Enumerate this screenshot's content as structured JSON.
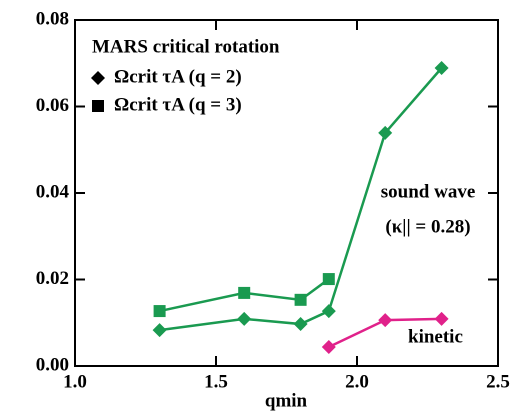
{
  "chart_data": {
    "type": "line",
    "x_label": "qmin",
    "legend_title": "MARS critical rotation",
    "xlim": [
      1.0,
      2.5
    ],
    "ylim": [
      0,
      0.08
    ],
    "xticks": [
      {
        "value": 1.0,
        "label": "1.0"
      },
      {
        "value": 1.5,
        "label": "1.5"
      },
      {
        "value": 2.0,
        "label": "2.0"
      },
      {
        "value": 2.5,
        "label": "2.5"
      }
    ],
    "yticks": [
      {
        "value": 0,
        "label": "0.00"
      },
      {
        "value": 0.02,
        "label": "0.02"
      },
      {
        "value": 0.04,
        "label": "0.04"
      },
      {
        "value": 0.06,
        "label": "0.06"
      },
      {
        "value": 0.08,
        "label": "0.08"
      }
    ],
    "grid": false,
    "series": [
      {
        "name": "Ωcrit τA (q = 2)",
        "color": "#1a9a50",
        "marker": "diamond",
        "x": [
          1.3,
          1.6,
          1.8,
          1.9,
          2.1,
          2.3
        ],
        "values": [
          0.0083,
          0.0109,
          0.0097,
          0.0127,
          0.0539,
          0.0689
        ]
      },
      {
        "name": "Ωcrit τA (q = 3)",
        "color": "#1a9a50",
        "marker": "square",
        "x": [
          1.3,
          1.6,
          1.8,
          1.9
        ],
        "values": [
          0.0127,
          0.0169,
          0.0153,
          0.0201
        ]
      },
      {
        "name": "kinetic",
        "color": "#e0218a",
        "marker": "diamond",
        "x": [
          1.9,
          2.1,
          2.3
        ],
        "values": [
          0.0044,
          0.0106,
          0.0109
        ]
      }
    ],
    "annotations": [
      {
        "text": "sound wave",
        "color": "#1a9a50"
      },
      {
        "text": "(κ|| = 0.28)",
        "color": "#1a9a50"
      }
    ]
  }
}
